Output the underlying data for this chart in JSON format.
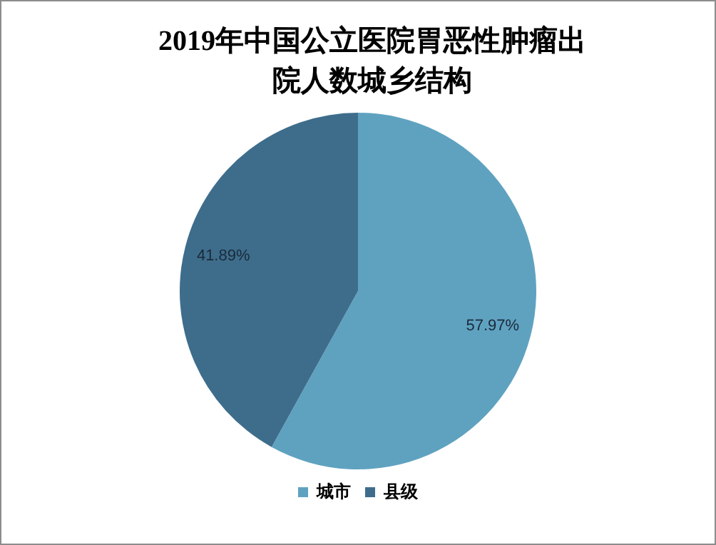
{
  "chart_data": {
    "type": "pie",
    "title": "2019年中国公立医院胃恶性肿瘤出院人数城乡结构",
    "categories": [
      "城市",
      "县级"
    ],
    "values": [
      57.97,
      41.89
    ],
    "colors": [
      "#5fa2c0",
      "#3e6d8c"
    ],
    "value_labels": [
      "57.97%",
      "41.89%"
    ],
    "legend": "bottom"
  }
}
